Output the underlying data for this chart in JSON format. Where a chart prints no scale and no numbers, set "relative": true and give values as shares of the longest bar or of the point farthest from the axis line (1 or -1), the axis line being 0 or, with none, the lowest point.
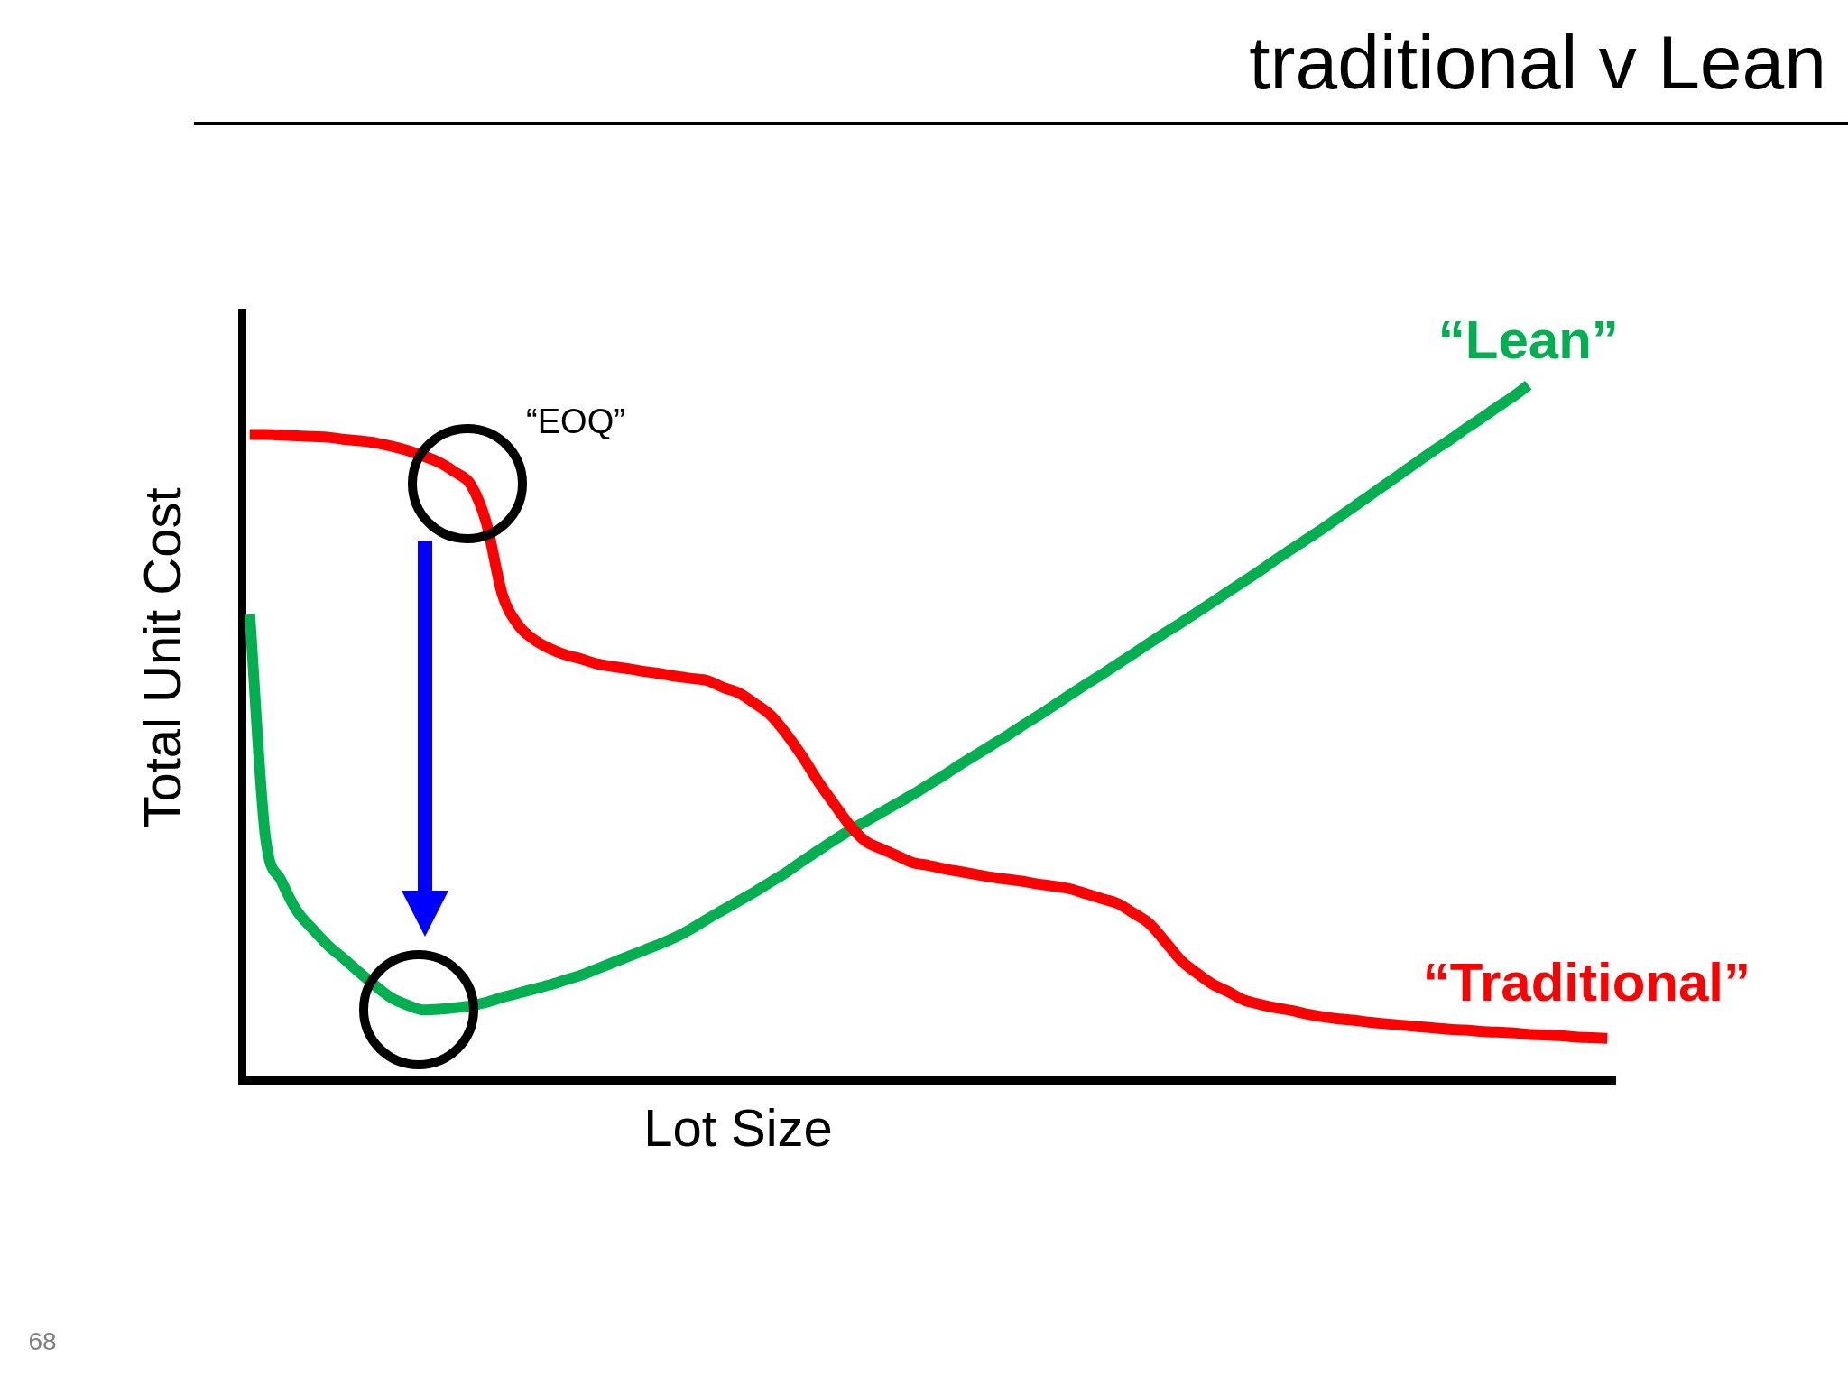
{
  "chart_data": {
    "type": "line",
    "title": "traditional v Lean",
    "xlabel": "Lot Size",
    "ylabel": "Total Unit Cost",
    "relative": true,
    "categories": [
      null,
      null,
      null,
      null,
      null,
      null,
      null,
      null,
      null,
      null,
      null,
      null,
      null,
      null,
      null,
      null,
      null,
      null,
      null,
      null,
      null,
      null,
      null,
      null,
      null,
      null,
      null,
      null,
      null,
      null,
      null,
      null,
      null,
      null,
      null,
      null,
      null,
      null,
      null,
      null,
      null,
      null,
      null,
      null,
      null,
      null,
      null,
      null,
      null,
      null,
      null,
      null,
      null,
      null,
      null,
      null,
      null,
      null,
      null,
      null,
      null,
      null,
      null,
      null,
      null,
      null,
      null,
      null,
      null,
      null,
      null,
      null,
      null,
      null,
      null,
      null,
      null,
      null,
      null,
      null,
      null,
      null,
      null,
      null,
      null,
      null,
      null
    ],
    "series": [
      {
        "name": "“Traditional”",
        "color": "#ff0000",
        "values": [
          0.929,
          0.929,
          0.928,
          0.927,
          0.926,
          0.925,
          0.922,
          0.92,
          0.917,
          0.912,
          0.906,
          0.898,
          0.889,
          0.875,
          0.857,
          0.801,
          0.699,
          0.655,
          0.634,
          0.621,
          0.612,
          0.606,
          0.599,
          0.595,
          0.592,
          0.588,
          0.585,
          0.581,
          0.578,
          0.575,
          0.565,
          0.557,
          0.542,
          0.525,
          0.498,
          0.466,
          0.43,
          0.398,
          0.367,
          0.344,
          0.333,
          0.323,
          0.313,
          0.309,
          0.304,
          0.3,
          0.296,
          0.292,
          0.289,
          0.286,
          0.282,
          0.279,
          0.275,
          0.268,
          0.261,
          0.254,
          0.24,
          0.225,
          0.199,
          0.172,
          0.154,
          0.138,
          0.127,
          0.115,
          0.109,
          0.104,
          0.1,
          0.095,
          0.091,
          0.088,
          0.086,
          0.083,
          0.081,
          0.079,
          0.077,
          0.075,
          0.073,
          0.072,
          0.07,
          0.069,
          0.068,
          0.066,
          0.065,
          0.064,
          0.062,
          0.061,
          0.06
        ]
      },
      {
        "name": "“Lean”",
        "color": "#00b050",
        "values": [
          0.67,
          0.349,
          0.287,
          0.243,
          0.217,
          0.193,
          0.174,
          0.154,
          0.135,
          0.118,
          0.108,
          0.101,
          0.102,
          0.104,
          0.107,
          0.112,
          0.119,
          0.125,
          0.131,
          0.137,
          0.144,
          0.151,
          0.16,
          0.169,
          0.178,
          0.187,
          0.196,
          0.206,
          0.218,
          0.232,
          0.245,
          0.258,
          0.271,
          0.285,
          0.299,
          0.315,
          0.33,
          0.345,
          0.359,
          0.372,
          0.385,
          0.398,
          0.411,
          0.425,
          0.439,
          0.454,
          0.468,
          0.482,
          0.496,
          0.511,
          0.525,
          0.54,
          0.555,
          0.57,
          0.584,
          0.599,
          0.614,
          0.629,
          0.644,
          0.658,
          0.673,
          0.688,
          0.703,
          0.718,
          0.733,
          0.749,
          0.764,
          0.779,
          0.794,
          0.81,
          0.826,
          0.842,
          0.858,
          0.874,
          0.89,
          0.906,
          0.921,
          0.937,
          0.952,
          0.968,
          0.983,
          1,
          null,
          null,
          null,
          null,
          null
        ]
      }
    ],
    "annotations": [
      "“EOQ”",
      "68"
    ],
    "legend": false,
    "grid": false,
    "marker": "none",
    "line_style": "solid",
    "tick_labels": false
  }
}
